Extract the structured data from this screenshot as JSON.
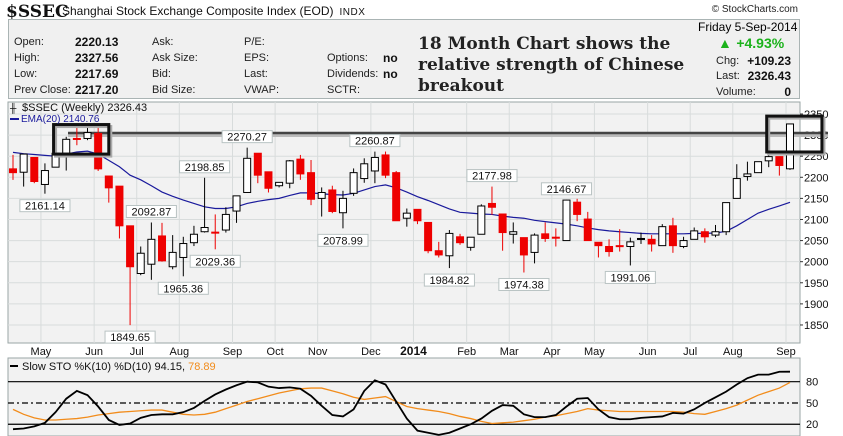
{
  "header": {
    "symbol": "$SSEC",
    "name": "Shanghai Stock Exchange Composite Index (EOD)",
    "exchange": "INDX",
    "copyright": "© StockCharts.com"
  },
  "quote": {
    "fields": [
      {
        "label": "Open:",
        "value": "2220.13"
      },
      {
        "label": "High:",
        "value": "2327.56"
      },
      {
        "label": "Low:",
        "value": "2217.69"
      },
      {
        "label": "Prev Close:",
        "value": "2217.20"
      }
    ],
    "fields2": [
      "Ask:",
      "Ask Size:",
      "Bid:",
      "Bid Size:"
    ],
    "fields3": [
      "P/E:",
      "EPS:",
      "Last:",
      "VWAP:"
    ],
    "fields4": [
      {
        "label": "",
        "value": ""
      },
      {
        "label": "Options:",
        "value": "no"
      },
      {
        "label": "Dividends:",
        "value": "no"
      },
      {
        "label": "SCTR:",
        "value": ""
      }
    ],
    "date": "Friday  5-Sep-2014",
    "change_pct": "+4.93%",
    "chg_label": "Chg:",
    "chg": "+109.23",
    "last_label": "Last:",
    "last": "2326.43",
    "volume_label": "Volume:",
    "volume": "0",
    "up_color": "#1bb21b"
  },
  "annotation": {
    "headline": "18 Month Chart shows the relative strength of Chinese breakout"
  },
  "chart_data": [
    {
      "type": "candlestick",
      "title": "$SSEC (Weekly) 2326.43",
      "overlay_label": "EMA(20) 2140.76",
      "ylim": [
        1800,
        2375
      ],
      "yticks": [
        1850,
        1900,
        1950,
        2000,
        2050,
        2100,
        2150,
        2200,
        2250,
        2300,
        2350
      ],
      "grid": true,
      "colors": {
        "up": "#000000",
        "down": "#ee0000",
        "ema": "#1a1a9c"
      },
      "dates": [
        "2013-04-12",
        "2013-04-19",
        "2013-04-26",
        "2013-05-03",
        "2013-05-10",
        "2013-05-17",
        "2013-05-24",
        "2013-05-31",
        "2013-06-07",
        "2013-06-14",
        "2013-06-21",
        "2013-06-28",
        "2013-07-05",
        "2013-07-12",
        "2013-07-19",
        "2013-07-26",
        "2013-08-02",
        "2013-08-09",
        "2013-08-16",
        "2013-08-23",
        "2013-08-30",
        "2013-09-06",
        "2013-09-13",
        "2013-09-20",
        "2013-09-27",
        "2013-10-04",
        "2013-10-11",
        "2013-10-18",
        "2013-10-25",
        "2013-11-01",
        "2013-11-08",
        "2013-11-15",
        "2013-11-22",
        "2013-11-29",
        "2013-12-06",
        "2013-12-13",
        "2013-12-20",
        "2013-12-27",
        "2014-01-03",
        "2014-01-10",
        "2014-01-17",
        "2014-01-24",
        "2014-01-31",
        "2014-02-07",
        "2014-02-14",
        "2014-02-21",
        "2014-02-28",
        "2014-03-07",
        "2014-03-14",
        "2014-03-21",
        "2014-03-28",
        "2014-04-04",
        "2014-04-11",
        "2014-04-18",
        "2014-04-25",
        "2014-05-02",
        "2014-05-09",
        "2014-05-16",
        "2014-05-23",
        "2014-05-30",
        "2014-06-06",
        "2014-06-13",
        "2014-06-20",
        "2014-06-27",
        "2014-07-04",
        "2014-07-11",
        "2014-07-18",
        "2014-07-25",
        "2014-08-01",
        "2014-08-08",
        "2014-08-15",
        "2014-08-22",
        "2014-08-29",
        "2014-09-05"
      ],
      "month_labels": [
        "May",
        "Jun",
        "Jul",
        "Aug",
        "Sep",
        "Oct",
        "Nov",
        "Dec",
        "2014",
        "Feb",
        "Mar",
        "Apr",
        "May",
        "Jun",
        "Jul",
        "Aug",
        "Sep"
      ],
      "ohlc": [
        [
          2220,
          2253,
          2194,
          2211
        ],
        [
          2212,
          2255,
          2178,
          2255
        ],
        [
          2247,
          2247,
          2186,
          2190
        ],
        [
          2183,
          2233,
          2161.14,
          2216
        ],
        [
          2224,
          2265,
          2224,
          2257
        ],
        [
          2257,
          2296,
          2216,
          2290
        ],
        [
          2292,
          2320,
          2276,
          2291
        ],
        [
          2292,
          2326,
          2288,
          2306
        ],
        [
          2304,
          2318,
          2215,
          2220
        ],
        [
          2203,
          2203,
          2140,
          2175
        ],
        [
          2179,
          2179,
          2055,
          2085
        ],
        [
          2085,
          2085,
          1849.65,
          1988
        ],
        [
          1972,
          2036,
          1968,
          2020
        ],
        [
          1994,
          2092.87,
          1957,
          2053
        ],
        [
          2061,
          2092,
          2000,
          2002
        ],
        [
          1988,
          2063,
          1982,
          2022
        ],
        [
          2010,
          2059,
          1965.36,
          2043
        ],
        [
          2045,
          2085,
          2037,
          2065
        ],
        [
          2071,
          2198.85,
          2069,
          2081
        ],
        [
          2070,
          2112,
          2029.36,
          2069
        ],
        [
          2075,
          2129,
          2069,
          2112
        ],
        [
          2120,
          2156,
          2092,
          2156
        ],
        [
          2164,
          2270.27,
          2164,
          2245
        ],
        [
          2257,
          2257,
          2186,
          2205
        ],
        [
          2213,
          2213,
          2164,
          2174
        ],
        [
          2180,
          2188,
          2176,
          2188
        ],
        [
          2186,
          2241,
          2174,
          2239
        ],
        [
          2243,
          2253,
          2194,
          2208
        ],
        [
          2211,
          2241,
          2134,
          2148
        ],
        [
          2150,
          2176,
          2107,
          2164
        ],
        [
          2170,
          2180,
          2115,
          2119
        ],
        [
          2116,
          2168,
          2078.99,
          2150
        ],
        [
          2162,
          2221,
          2156,
          2211
        ],
        [
          2197,
          2245,
          2187,
          2232
        ],
        [
          2215,
          2260.87,
          2186,
          2247
        ],
        [
          2253,
          2261,
          2198,
          2205
        ],
        [
          2211,
          2215,
          2097,
          2097
        ],
        [
          2103,
          2126,
          2083,
          2115
        ],
        [
          2124,
          2124,
          2089,
          2097
        ],
        [
          2093,
          2093,
          2020,
          2026
        ],
        [
          2026,
          2047,
          2010,
          2016
        ],
        [
          2014,
          2075,
          1984.82,
          2067
        ],
        [
          2059,
          2066,
          2040,
          2045
        ],
        [
          2034,
          2058,
          2026,
          2058
        ],
        [
          2065,
          2136,
          2065,
          2132
        ],
        [
          2138,
          2177.98,
          2111,
          2129
        ],
        [
          2113,
          2113,
          2026,
          2069
        ],
        [
          2065,
          2093,
          2043,
          2071
        ],
        [
          2057,
          2057,
          1974.38,
          2016
        ],
        [
          2022,
          2067,
          1996,
          2063
        ],
        [
          2066,
          2093,
          2047,
          2055
        ],
        [
          2058,
          2079,
          2036,
          2057
        ],
        [
          2050,
          2146.67,
          2050,
          2146
        ],
        [
          2141,
          2149,
          2096,
          2112
        ],
        [
          2101,
          2118,
          2050,
          2050
        ],
        [
          2046,
          2046,
          2010,
          2038
        ],
        [
          2036,
          2053,
          2012,
          2024
        ],
        [
          2038,
          2077,
          2024,
          2037
        ],
        [
          2036,
          2057,
          1991.06,
          2047
        ],
        [
          2054,
          2069,
          2042,
          2055
        ],
        [
          2053,
          2063,
          2024,
          2042
        ],
        [
          2038,
          2089,
          2038,
          2083
        ],
        [
          2085,
          2104,
          2021,
          2038
        ],
        [
          2036,
          2059,
          2032,
          2050
        ],
        [
          2053,
          2081,
          2053,
          2073
        ],
        [
          2071,
          2079,
          2045,
          2059
        ],
        [
          2063,
          2087,
          2058,
          2071
        ],
        [
          2071,
          2140,
          2063,
          2140
        ],
        [
          2150,
          2231,
          2150,
          2197
        ],
        [
          2202,
          2237,
          2192,
          2208
        ],
        [
          2211,
          2237,
          2211,
          2237
        ],
        [
          2239,
          2259,
          2224,
          2249
        ],
        [
          2249,
          2249,
          2204,
          2228
        ],
        [
          2220.13,
          2327.56,
          2217.69,
          2326.43
        ]
      ],
      "ema20": [
        2259,
        2256,
        2254,
        2252,
        2250,
        2255,
        2260,
        2262,
        2255,
        2240,
        2225,
        2205,
        2194,
        2180,
        2165,
        2155,
        2146,
        2138,
        2130,
        2126,
        2126,
        2130,
        2138,
        2143,
        2147,
        2150,
        2157,
        2163,
        2163,
        2161,
        2159,
        2158,
        2162,
        2170,
        2178,
        2182,
        2175,
        2165,
        2154,
        2145,
        2135,
        2125,
        2117,
        2115,
        2113,
        2112,
        2108,
        2105,
        2103,
        2098,
        2095,
        2092,
        2089,
        2085,
        2080,
        2076,
        2073,
        2071,
        2069,
        2067,
        2066,
        2066,
        2066,
        2066,
        2067,
        2067,
        2068,
        2072,
        2085,
        2100,
        2115,
        2124,
        2132,
        2140.76
      ],
      "callouts": [
        {
          "value": "2161.14",
          "index": 3,
          "side": "below"
        },
        {
          "value": "1849.65",
          "index": 11,
          "side": "below"
        },
        {
          "value": "2092.87",
          "index": 13,
          "side": "above"
        },
        {
          "value": "1965.36",
          "index": 16,
          "side": "below"
        },
        {
          "value": "2198.85",
          "index": 18,
          "side": "above"
        },
        {
          "value": "2029.36",
          "index": 19,
          "side": "below"
        },
        {
          "value": "2270.27",
          "index": 22,
          "side": "above"
        },
        {
          "value": "2078.99",
          "index": 31,
          "side": "below"
        },
        {
          "value": "2260.87",
          "index": 34,
          "side": "above"
        },
        {
          "value": "1984.82",
          "index": 41,
          "side": "below"
        },
        {
          "value": "2177.98",
          "index": 45,
          "side": "above"
        },
        {
          "value": "1974.38",
          "index": 48,
          "side": "below"
        },
        {
          "value": "2146.67",
          "index": 52,
          "side": "above"
        },
        {
          "value": "1991.06",
          "index": 58,
          "side": "below"
        }
      ],
      "resistance_level": 2305,
      "highlight_boxes": [
        {
          "from_index": 4,
          "to_index": 9,
          "low": 2255,
          "high": 2325
        },
        {
          "from_index": 71,
          "to_index": 76,
          "low": 2260,
          "high": 2345
        }
      ]
    },
    {
      "type": "line",
      "title": "Slow STO %K(10) %D(10) 94.15,",
      "d_label": "78.89",
      "ylim": [
        0,
        100
      ],
      "yticks": [
        20,
        50,
        80
      ],
      "colors": {
        "k": "#000000",
        "d": "#f28c1b"
      },
      "k": [
        13,
        14,
        17,
        22,
        37,
        56,
        67,
        61,
        45,
        26,
        19,
        21,
        29,
        33,
        34,
        34,
        37,
        43,
        53,
        62,
        69,
        75,
        80,
        79,
        73,
        71,
        72,
        70,
        60,
        46,
        33,
        31,
        41,
        67,
        82,
        76,
        52,
        28,
        11,
        8,
        5,
        8,
        14,
        20,
        28,
        39,
        47,
        46,
        34,
        30,
        30,
        33,
        45,
        56,
        57,
        41,
        30,
        27,
        27,
        29,
        30,
        31,
        36,
        35,
        41,
        50,
        58,
        66,
        76,
        85,
        90,
        90,
        94,
        94.15
      ],
      "d": [
        41,
        34,
        29,
        26,
        26,
        27,
        28,
        30,
        33,
        35,
        37,
        38,
        39,
        40,
        40,
        37,
        34,
        33,
        34,
        37,
        42,
        47,
        52,
        56,
        60,
        64,
        67,
        70,
        71,
        71,
        67,
        63,
        58,
        55,
        57,
        59,
        52,
        45,
        42,
        40,
        38,
        35,
        31,
        28,
        24,
        21,
        22,
        23,
        25,
        27,
        30,
        32,
        35,
        38,
        42,
        40,
        39,
        38,
        38,
        38,
        38,
        38,
        38,
        37,
        35,
        34,
        38,
        42,
        47,
        54,
        61,
        66,
        71,
        78.89
      ]
    }
  ]
}
